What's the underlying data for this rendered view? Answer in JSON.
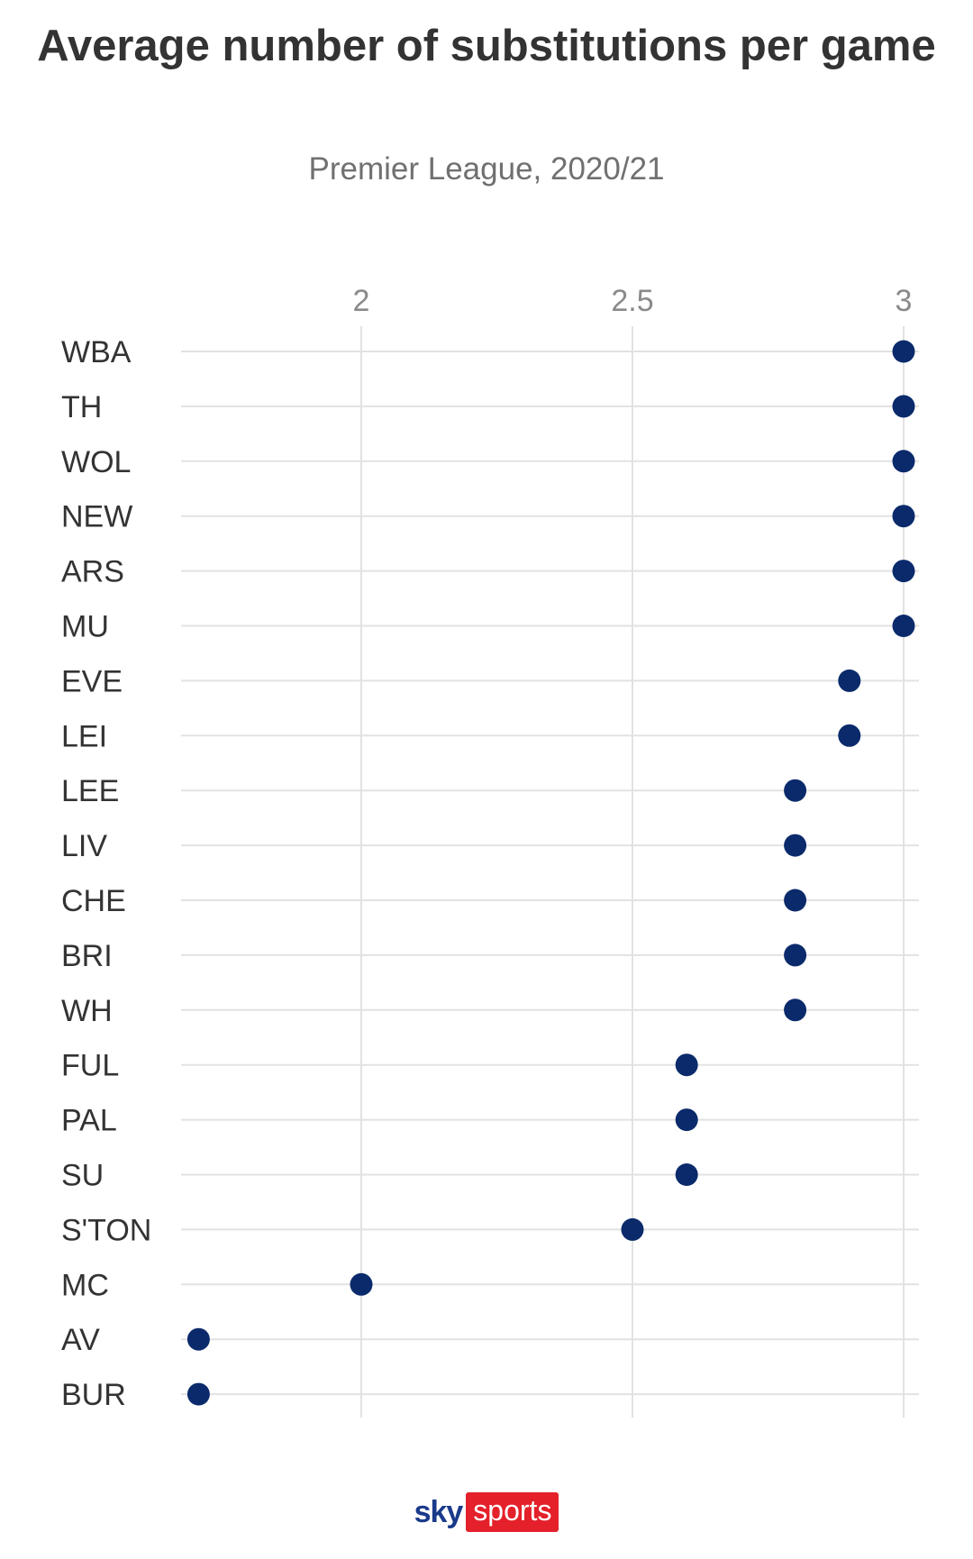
{
  "chart_data": {
    "type": "scatter",
    "title": "Average number of substitutions per game",
    "subtitle": "Premier League, 2020/21",
    "categories": [
      "WBA",
      "TH",
      "WOL",
      "NEW",
      "ARS",
      "MU",
      "EVE",
      "LEI",
      "LEE",
      "LIV",
      "CHE",
      "BRI",
      "WH",
      "FUL",
      "PAL",
      "SU",
      "S'TON",
      "MC",
      "AV",
      "BUR"
    ],
    "values": [
      3.0,
      3.0,
      3.0,
      3.0,
      3.0,
      3.0,
      2.9,
      2.9,
      2.8,
      2.8,
      2.8,
      2.8,
      2.8,
      2.6,
      2.6,
      2.6,
      2.5,
      2.0,
      1.7,
      1.7
    ],
    "xticks": [
      2,
      2.5,
      3
    ],
    "xtick_labels": [
      "2",
      "2.5",
      "3"
    ],
    "xlim": [
      1.67,
      3.03
    ],
    "xaxis_position": "top",
    "grid": true,
    "colors": {
      "marker": "#0a2a6b",
      "grid": "#e2e2e2",
      "text": "#333333",
      "tick": "#8a8a8a"
    }
  },
  "branding": {
    "sky": "sky",
    "sports": "sports"
  }
}
